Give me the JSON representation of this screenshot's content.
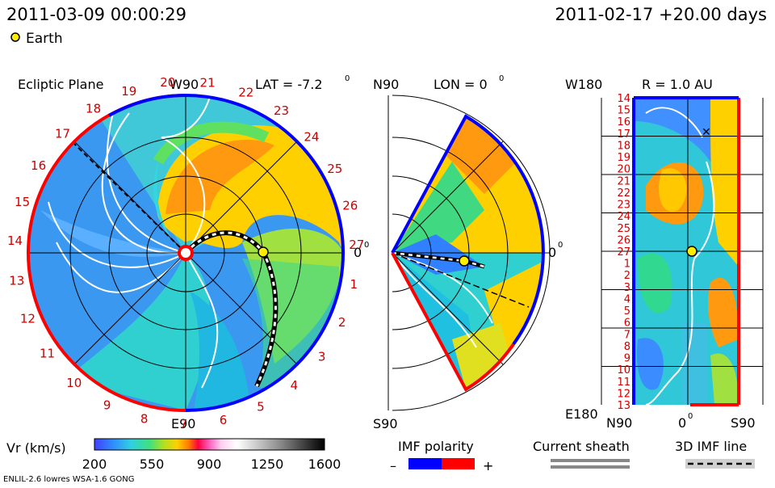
{
  "header": {
    "datetime": "2011-03-09 00:00:29",
    "model_run": "2011-02-17 +20.00 days"
  },
  "legend_earth": {
    "label": "Earth"
  },
  "ecliptic_panel": {
    "title": "Ecliptic Plane",
    "lat_label": "LAT = -7.2",
    "top_label": "W90",
    "bottom_label": "E90",
    "right_label": "0",
    "degree_symbol": "0",
    "day_labels": [
      "20",
      "21",
      "22",
      "23",
      "24",
      "25",
      "26",
      "27",
      "1",
      "2",
      "3",
      "4",
      "5",
      "6",
      "7",
      "8",
      "9",
      "10",
      "11",
      "12",
      "13",
      "14",
      "15",
      "16",
      "17",
      "18",
      "19"
    ]
  },
  "meridional_panel": {
    "top_label": "N90",
    "lon_label": "LON = 0",
    "bottom_label": "S90",
    "right_label": "0",
    "degree_symbol": "0"
  },
  "radial_panel": {
    "top_left_label": "W180",
    "r_label": "R = 1.0 AU",
    "bottom_left_label": "E180",
    "x_labels": [
      "N90",
      "0",
      "S90"
    ],
    "degree_symbol": "0",
    "day_labels": [
      "14",
      "15",
      "16",
      "17",
      "18",
      "19",
      "20",
      "21",
      "22",
      "23",
      "24",
      "25",
      "26",
      "27",
      "1",
      "2",
      "3",
      "4",
      "5",
      "6",
      "7",
      "8",
      "9",
      "10",
      "11",
      "12",
      "13"
    ]
  },
  "colorbar": {
    "label": "Vr (km/s)",
    "ticks": [
      "200",
      "550",
      "900",
      "1250",
      "1600"
    ]
  },
  "imf_legend": {
    "title": "IMF polarity",
    "minus": "–",
    "plus": "+"
  },
  "current_sheath_legend": {
    "title": "Current sheath"
  },
  "imf_line_legend": {
    "title": "3D IMF line"
  },
  "footer": {
    "model": "ENLIL-2.6 lowres WSA-1.6 GONG"
  },
  "colors": {
    "positive_polarity": "#ff0000",
    "negative_polarity": "#0000ff",
    "earth": "#ffee00",
    "day_label": "#cc0000"
  }
}
